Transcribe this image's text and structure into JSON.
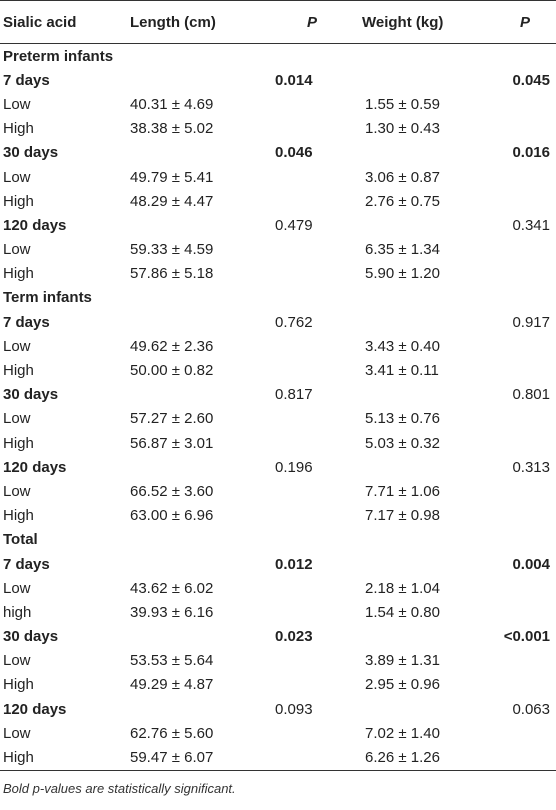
{
  "headers": {
    "label": "Sialic acid",
    "length": "Length (cm)",
    "p1": "P",
    "weight": "Weight (kg)",
    "p2": "P"
  },
  "rows": [
    {
      "type": "section",
      "label": "Preterm infants"
    },
    {
      "type": "day",
      "label": "7 days",
      "p1": "0.014",
      "p1_bold": true,
      "p2": "0.045",
      "p2_bold": true
    },
    {
      "type": "data",
      "label": "Low",
      "length": "40.31 ± 4.69",
      "weight": "1.55 ± 0.59"
    },
    {
      "type": "data",
      "label": "High",
      "length": "38.38 ± 5.02",
      "weight": "1.30 ± 0.43"
    },
    {
      "type": "day",
      "label": "30 days",
      "p1": "0.046",
      "p1_bold": true,
      "p2": "0.016",
      "p2_bold": true
    },
    {
      "type": "data",
      "label": "Low",
      "length": "49.79 ± 5.41",
      "weight": "3.06 ± 0.87"
    },
    {
      "type": "data",
      "label": "High",
      "length": "48.29 ± 4.47",
      "weight": "2.76 ± 0.75"
    },
    {
      "type": "day",
      "label": "120 days",
      "p1": "0.479",
      "p1_bold": false,
      "p2": "0.341",
      "p2_bold": false
    },
    {
      "type": "data",
      "label": "Low",
      "length": "59.33 ± 4.59",
      "weight": "6.35 ± 1.34"
    },
    {
      "type": "data",
      "label": "High",
      "length": "57.86 ± 5.18",
      "weight": "5.90 ± 1.20"
    },
    {
      "type": "section",
      "label": "Term infants"
    },
    {
      "type": "day",
      "label": "7 days",
      "p1": "0.762",
      "p1_bold": false,
      "p2": "0.917",
      "p2_bold": false
    },
    {
      "type": "data",
      "label": "Low",
      "length": "49.62 ± 2.36",
      "weight": "3.43 ± 0.40"
    },
    {
      "type": "data",
      "label": "High",
      "length": "50.00 ± 0.82",
      "weight": "3.41 ± 0.11"
    },
    {
      "type": "day",
      "label": "30 days",
      "p1": "0.817",
      "p1_bold": false,
      "p2": "0.801",
      "p2_bold": false
    },
    {
      "type": "data",
      "label": "Low",
      "length": "57.27 ± 2.60",
      "weight": "5.13 ± 0.76"
    },
    {
      "type": "data",
      "label": "High",
      "length": "56.87 ± 3.01",
      "weight": "5.03 ± 0.32"
    },
    {
      "type": "day",
      "label": "120 days",
      "p1": "0.196",
      "p1_bold": false,
      "p2": "0.313",
      "p2_bold": false
    },
    {
      "type": "data",
      "label": "Low",
      "length": "66.52 ± 3.60",
      "weight": "7.71 ± 1.06"
    },
    {
      "type": "data",
      "label": "High",
      "length": "63.00 ± 6.96",
      "weight": "7.17 ± 0.98"
    },
    {
      "type": "section",
      "label": "Total"
    },
    {
      "type": "day",
      "label": "7 days",
      "p1": "0.012",
      "p1_bold": true,
      "p2": "0.004",
      "p2_bold": true
    },
    {
      "type": "data",
      "label": "Low",
      "length": "43.62 ± 6.02",
      "weight": "2.18 ± 1.04"
    },
    {
      "type": "data",
      "label": "high",
      "length": "39.93 ± 6.16",
      "weight": "1.54 ± 0.80"
    },
    {
      "type": "day",
      "label": "30 days",
      "p1": "0.023",
      "p1_bold": true,
      "p2": "<0.001",
      "p2_bold": true
    },
    {
      "type": "data",
      "label": "Low",
      "length": "53.53 ± 5.64",
      "weight": "3.89 ± 1.31"
    },
    {
      "type": "data",
      "label": "High",
      "length": "49.29 ± 4.87",
      "weight": "2.95 ± 0.96"
    },
    {
      "type": "day",
      "label": "120 days",
      "p1": "0.093",
      "p1_bold": false,
      "p2": "0.063",
      "p2_bold": false
    },
    {
      "type": "data",
      "label": "Low",
      "length": "62.76 ± 5.60",
      "weight": "7.02 ± 1.40"
    },
    {
      "type": "data",
      "label": "High",
      "length": "59.47 ± 6.07",
      "weight": "6.26 ± 1.26"
    }
  ],
  "footnote": "Bold p-values are statistically significant."
}
